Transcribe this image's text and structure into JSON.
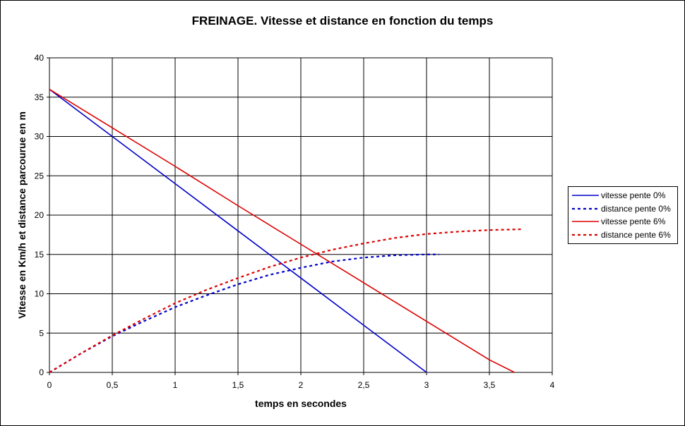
{
  "chart_data": {
    "type": "line",
    "title": "FREINAGE. Vitesse et distance en fonction du temps",
    "xlabel": "temps en secondes",
    "ylabel": "Vitesse en Km/h et distance parcourue en m",
    "xlim": [
      0,
      4
    ],
    "ylim": [
      0,
      40
    ],
    "x_ticks": [
      "0",
      "0,5",
      "1",
      "1,5",
      "2",
      "2,5",
      "3",
      "3,5",
      "4"
    ],
    "y_ticks": [
      "0",
      "5",
      "10",
      "15",
      "20",
      "25",
      "30",
      "35",
      "40"
    ],
    "grid": true,
    "legend_position": "right",
    "series": [
      {
        "name": "vitesse pente 0%",
        "color": "#0000CC",
        "style": "solid",
        "points": [
          [
            0,
            36
          ],
          [
            0.5,
            30
          ],
          [
            1,
            24
          ],
          [
            1.5,
            18
          ],
          [
            2,
            12
          ],
          [
            2.5,
            6
          ],
          [
            3,
            0
          ]
        ]
      },
      {
        "name": "distance pente 0%",
        "color": "#0000CC",
        "style": "dashed",
        "points": [
          [
            0,
            0
          ],
          [
            0.25,
            2.4
          ],
          [
            0.5,
            4.6
          ],
          [
            0.75,
            6.5
          ],
          [
            1,
            8.3
          ],
          [
            1.25,
            9.8
          ],
          [
            1.5,
            11.2
          ],
          [
            1.75,
            12.4
          ],
          [
            2,
            13.3
          ],
          [
            2.25,
            14.1
          ],
          [
            2.5,
            14.6
          ],
          [
            2.75,
            14.9
          ],
          [
            3,
            15.0
          ],
          [
            3.1,
            15.0
          ]
        ]
      },
      {
        "name": "vitesse pente 6%",
        "color": "#DD0000",
        "style": "solid",
        "points": [
          [
            0,
            36
          ],
          [
            0.5,
            31.1
          ],
          [
            1,
            26.2
          ],
          [
            1.5,
            21.2
          ],
          [
            2,
            16.3
          ],
          [
            2.5,
            11.4
          ],
          [
            3,
            6.5
          ],
          [
            3.5,
            1.6
          ],
          [
            3.7,
            0
          ]
        ]
      },
      {
        "name": "distance pente 6%",
        "color": "#DD0000",
        "style": "dashed",
        "points": [
          [
            0,
            0
          ],
          [
            0.25,
            2.4
          ],
          [
            0.5,
            4.7
          ],
          [
            0.75,
            6.8
          ],
          [
            1,
            8.8
          ],
          [
            1.25,
            10.5
          ],
          [
            1.5,
            12.0
          ],
          [
            1.75,
            13.4
          ],
          [
            2,
            14.6
          ],
          [
            2.25,
            15.6
          ],
          [
            2.5,
            16.4
          ],
          [
            2.75,
            17.1
          ],
          [
            3,
            17.6
          ],
          [
            3.25,
            17.9
          ],
          [
            3.5,
            18.1
          ],
          [
            3.75,
            18.2
          ]
        ]
      }
    ]
  }
}
